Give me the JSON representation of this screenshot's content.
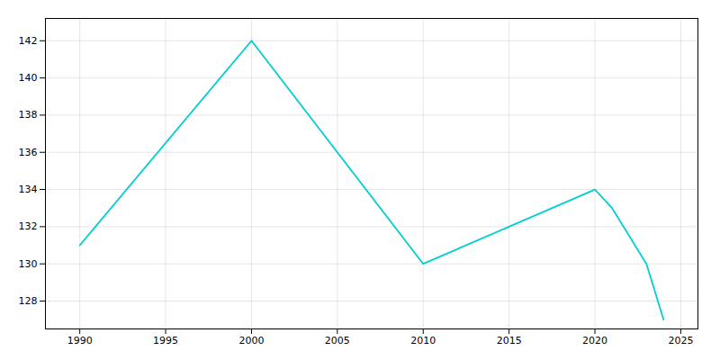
{
  "chart_data": {
    "type": "line",
    "x": [
      1990,
      2000,
      2010,
      2015,
      2020,
      2021,
      2023,
      2024
    ],
    "values": [
      131,
      142,
      130,
      132,
      134,
      133,
      130,
      127
    ],
    "color": "#00CED1",
    "xlim": [
      1988,
      2026
    ],
    "ylim": [
      126.5,
      143.2
    ],
    "xticks": [
      1990,
      1995,
      2000,
      2005,
      2010,
      2015,
      2020,
      2025
    ],
    "yticks": [
      128,
      130,
      132,
      134,
      136,
      138,
      140,
      142
    ],
    "grid": true
  }
}
